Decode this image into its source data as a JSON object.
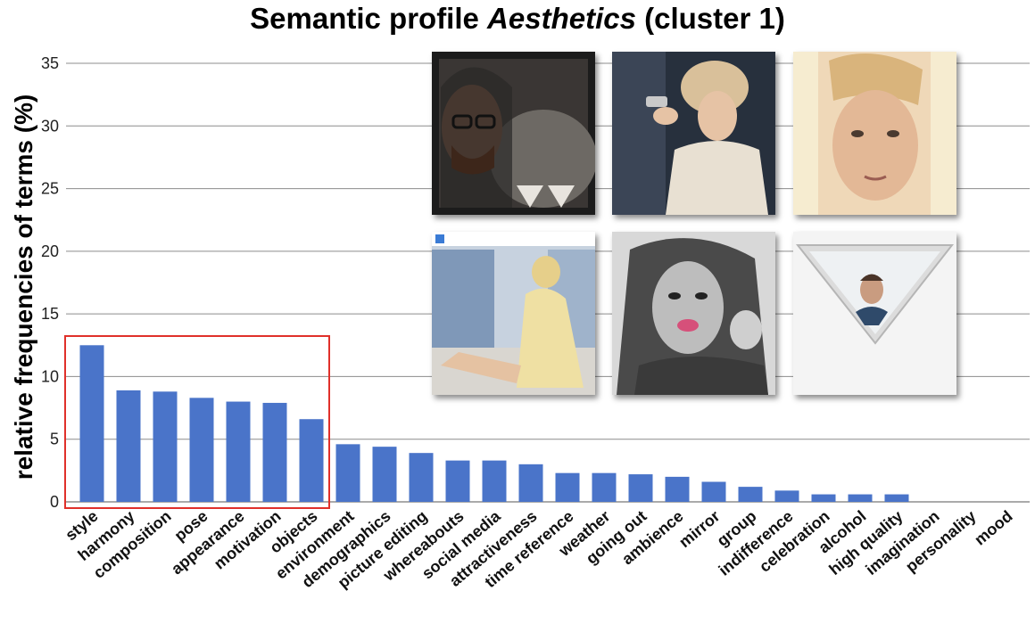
{
  "chart_data": {
    "type": "bar",
    "title_prefix": "Semantic profile ",
    "title_emphasis": "Aesthetics",
    "title_suffix": " (cluster 1)",
    "xlabel": "",
    "ylabel": "relative frequencies of terms (%)",
    "ylim": [
      0,
      35
    ],
    "yticks": [
      "0",
      "5",
      "10",
      "15",
      "20",
      "25",
      "30",
      "35"
    ],
    "grid": true,
    "categories": [
      "style",
      "harmony",
      "composition",
      "pose",
      "appearance",
      "motivation",
      "objects",
      "environment",
      "demographics",
      "picture editing",
      "whereabouts",
      "social media",
      "attractiveness",
      "time reference",
      "weather",
      "going out",
      "ambience",
      "mirror",
      "group",
      "indifference",
      "celebration",
      "alcohol",
      "high quality",
      "imagination",
      "personality",
      "mood"
    ],
    "values": [
      12.5,
      8.9,
      8.8,
      8.3,
      8.0,
      7.9,
      6.6,
      4.6,
      4.4,
      3.9,
      3.3,
      3.3,
      3.0,
      2.3,
      2.3,
      2.2,
      2.0,
      1.6,
      1.2,
      0.9,
      0.6,
      0.6,
      0.6,
      0.0,
      0.0,
      0.0
    ],
    "highlight": {
      "from": "style",
      "to": "objects",
      "color": "#e0302a"
    },
    "bar_color": "#4a74c9"
  },
  "photos": [
    {
      "name": "selfie-hooded-man-photo",
      "tone": "#2e2a28",
      "accent": "#8f8a84"
    },
    {
      "name": "selfie-mirror-woman-photo",
      "tone": "#2c3545",
      "accent": "#d8cdb8"
    },
    {
      "name": "selfie-young-man-photo",
      "tone": "#e8c7a4",
      "accent": "#b88d6a"
    },
    {
      "name": "selfie-woman-sitting-photo",
      "tone": "#8aa3c2",
      "accent": "#e7d18a"
    },
    {
      "name": "selfie-woman-bw-photo",
      "tone": "#6e6e6e",
      "accent": "#d96b8a"
    },
    {
      "name": "selfie-mirror-triangle-photo",
      "tone": "#f0f0f0",
      "accent": "#7c6c62"
    }
  ]
}
